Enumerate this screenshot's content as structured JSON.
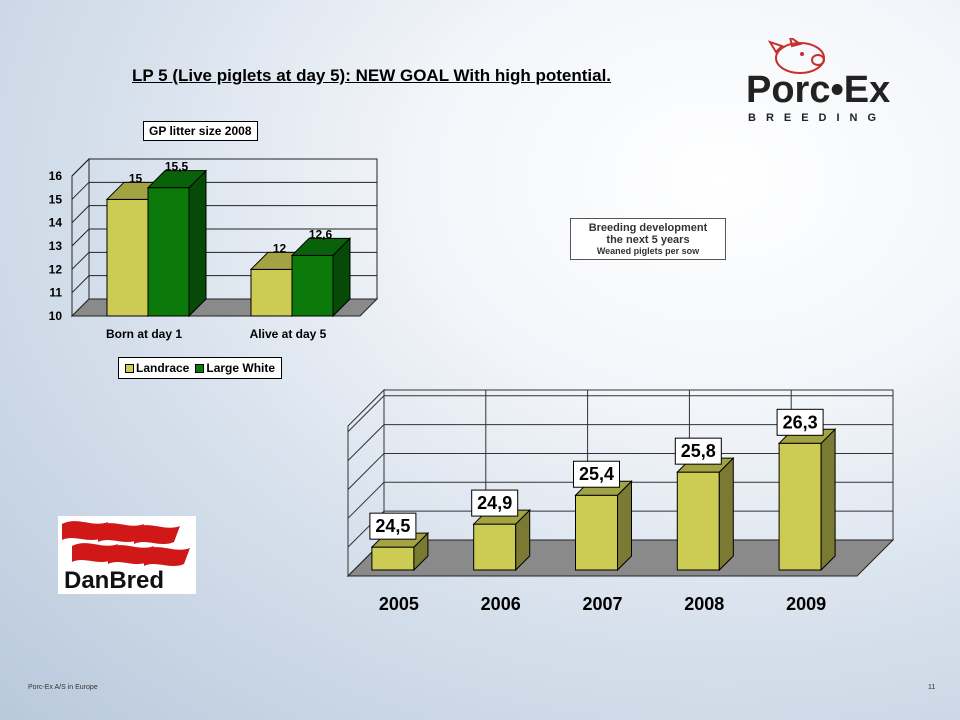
{
  "title": "LP 5 (Live piglets at day 5): NEW GOAL With high potential.",
  "logo_porcex": {
    "text": "Porc•Ex",
    "subtext": "BREEDING"
  },
  "logo_danbred": {
    "text": "DanBred"
  },
  "breeding_box": {
    "line1": "Breeding development",
    "line2": "the next 5 years",
    "line3": "Weaned piglets per sow"
  },
  "chart_data": [
    {
      "type": "bar",
      "title": "GP litter size 2008",
      "categories": [
        "Born at day 1",
        "Alive at day 5"
      ],
      "series": [
        {
          "name": "Landrace",
          "values": [
            15,
            12
          ],
          "labels": [
            "15",
            "12"
          ],
          "color": "#cccc55"
        },
        {
          "name": "Large White",
          "values": [
            15.5,
            12.6
          ],
          "labels": [
            "15,5",
            "12,6"
          ],
          "color": "#0b7a0b"
        }
      ],
      "yticks": [
        "10",
        "11",
        "12",
        "13",
        "14",
        "15",
        "16"
      ],
      "ylim": [
        10,
        16
      ],
      "legend": "bottom"
    },
    {
      "type": "bar",
      "categories": [
        "2005",
        "2006",
        "2007",
        "2008",
        "2009"
      ],
      "values": [
        24.5,
        24.9,
        25.4,
        25.8,
        26.3
      ],
      "labels": [
        "24,5",
        "24,9",
        "25,4",
        "25,8",
        "26,3"
      ],
      "ylim": [
        24,
        26.6
      ],
      "color": "#cccc55"
    }
  ],
  "footer": {
    "left": "Porc-Ex A/S in Europe",
    "page": "11"
  }
}
